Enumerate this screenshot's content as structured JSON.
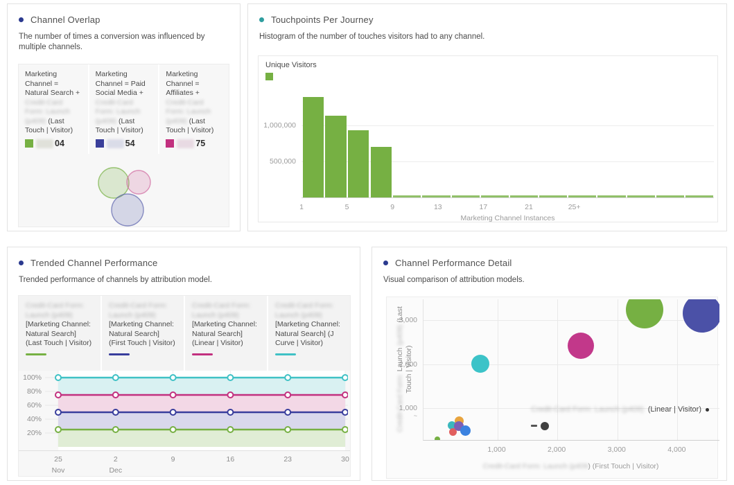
{
  "panels": {
    "overlap": {
      "title": "Channel Overlap",
      "bullet_color": "#2b3a8f",
      "subtitle": "The number of times a conversion was influenced by multiple channels.",
      "legend": [
        {
          "prefix": "Marketing Channel = Natural Search + ",
          "redacted": "Credit-Card Form: Launch (p409)",
          "suffix": " (Last Touch | Visitor)",
          "swatch": "#76b043",
          "chip": "#e0e1da",
          "value_visible": "04"
        },
        {
          "prefix": "Marketing Channel = Paid Social Media + ",
          "redacted": "Credit-Card Form: Launch (p409)",
          "suffix": " (Last Touch | Visitor)",
          "swatch": "#3a3f9a",
          "chip": "#dadce8",
          "value_visible": "54"
        },
        {
          "prefix": "Marketing Channel = Affiliates + ",
          "redacted": "Credit-Card Form: Launch (p409)",
          "suffix": " (Last Touch | Visitor)",
          "swatch": "#c2307f",
          "chip": "#e8dae3",
          "value_visible": "75"
        }
      ]
    },
    "touchpoints": {
      "title": "Touchpoints Per Journey",
      "bullet_color": "#2f9e9f",
      "subtitle": "Histogram of the number of touches visitors had to any channel.",
      "legend_label": "Unique Visitors",
      "legend_color": "#76b043",
      "xlabel": "Marketing Channel Instances"
    },
    "trended": {
      "title": "Trended Channel Performance",
      "bullet_color": "#2b3a8f",
      "subtitle": "Trended performance of channels by attribution model.",
      "legend": [
        {
          "redacted": "Credit-Card Form: Launch (p409)",
          "label": "[Marketing Channel: Natural Search] (Last Touch | Visitor)",
          "color": "#76b043"
        },
        {
          "redacted": "Credit-Card Form: Launch (p409)",
          "label": "[Marketing Channel: Natural Search] (First Touch | Visitor)",
          "color": "#383d9c"
        },
        {
          "redacted": "Credit-Card Form: Launch (p409)",
          "label": "[Marketing Channel: Natural Search] (Linear | Visitor)",
          "color": "#c2307f"
        },
        {
          "redacted": "Credit-Card Form: Launch (p409)",
          "label": "[Marketing Channel: Natural Search] (J Curve | Visitor)",
          "color": "#3fc1c5"
        }
      ]
    },
    "detail": {
      "title": "Channel Performance Detail",
      "bullet_color": "#2b3a8f",
      "subtitle": "Visual comparison of attribution models.",
      "ylabel_redacted_1": "Credit-Card Form:",
      "ylabel_clear_1": " Launch ",
      "ylabel_redacted_2": "(p409)",
      "ylabel_clear_2": " (Last Touch | Visitor)",
      "xlabel_redacted": "Credit-Card Form: Launch (p409",
      "xlabel_visible": ") (First Touch | Visitor)",
      "size_legend_redacted": "Credit-Card Form: Launch (p409)",
      "size_legend_visible": "(Linear | Visitor)",
      "axis_break_marker": "~"
    }
  },
  "chart_data": [
    {
      "id": "channel-overlap-venn",
      "type": "venn",
      "circles": [
        {
          "label": "Natural Search",
          "color": "#76b043",
          "cx": 137,
          "cy": 171,
          "r": 22
        },
        {
          "label": "Affiliates",
          "color": "#d06a9f",
          "cx": 173,
          "cy": 170,
          "r": 17
        },
        {
          "label": "Paid Social Media",
          "color": "#5b63ad",
          "cx": 157,
          "cy": 210,
          "r": 23
        }
      ]
    },
    {
      "id": "touchpoints-histogram",
      "type": "bar",
      "series_name": "Unique Visitors",
      "bar_color": "#76b043",
      "x_ticks": [
        "1",
        "5",
        "9",
        "13",
        "17",
        "21",
        "25+"
      ],
      "y_gridlines": [
        {
          "label": "500,000",
          "value": 500000
        },
        {
          "label": "1,000,000",
          "value": 1000000
        }
      ],
      "large_bars": [
        1390000,
        1130000,
        935000,
        700000
      ],
      "small_bars_count": 11,
      "small_bars_value": 15000,
      "xlabel": "Marketing Channel Instances",
      "ylim": [
        0,
        1730000
      ]
    },
    {
      "id": "trended-performance",
      "type": "line",
      "categories": [
        "25",
        "2",
        "9",
        "16",
        "23",
        "30"
      ],
      "month_labels": [
        "Nov",
        "Dec",
        "",
        "",
        "",
        ""
      ],
      "y_ticks": [
        "100%",
        "80%",
        "60%",
        "40%",
        "20%"
      ],
      "ylim": [
        0,
        100
      ],
      "series": [
        {
          "name": "J Curve | Visitor",
          "color": "#3fc1c5",
          "band": "#d9f1f2",
          "values": [
            100,
            100,
            100,
            100,
            100,
            100
          ]
        },
        {
          "name": "Linear | Visitor",
          "color": "#c2307f",
          "band": "#f3d8e6",
          "values": [
            75,
            75,
            75,
            75,
            75,
            75
          ]
        },
        {
          "name": "First Touch | Visitor",
          "color": "#383d9c",
          "band": "#d9d8ec",
          "values": [
            50,
            50,
            50,
            50,
            50,
            50
          ]
        },
        {
          "name": "Last Touch | Visitor",
          "color": "#76b043",
          "band": "#e0edd5",
          "values": [
            25,
            25,
            25,
            25,
            25,
            25
          ]
        }
      ]
    },
    {
      "id": "channel-performance-bubbles",
      "type": "scatter",
      "xlim": [
        -230,
        4700
      ],
      "ylim": [
        270,
        3480
      ],
      "x_ticks": [
        {
          "value": 1000,
          "label": "1,000"
        },
        {
          "value": 2000,
          "label": "2,000"
        },
        {
          "value": 3000,
          "label": "3,000"
        },
        {
          "value": 4000,
          "label": "4,000"
        }
      ],
      "y_ticks": [
        {
          "value": 1000,
          "label": "1,000"
        },
        {
          "value": 2000,
          "label": "2,000"
        },
        {
          "value": 3000,
          "label": "3,000"
        }
      ],
      "points": [
        {
          "x": 370,
          "y": 697,
          "r": 6.5,
          "color": "#e8a43e"
        },
        {
          "x": 243,
          "y": 602,
          "r": 6,
          "color": "#3bb8bd"
        },
        {
          "x": 255,
          "y": 444,
          "r": 5.5,
          "color": "#e15f5f"
        },
        {
          "x": 359,
          "y": 586,
          "r": 7,
          "color": "#7d5fb5"
        },
        {
          "x": 474,
          "y": 491,
          "r": 7.5,
          "color": "#3b82e0"
        },
        {
          "x": 1,
          "y": 286,
          "r": 4,
          "color": "#76b043"
        },
        {
          "x": 1790,
          "y": 586,
          "r": 6,
          "color": "#404040"
        },
        {
          "x": 717,
          "y": 2009,
          "r": 13,
          "color": "#3cc3c8"
        },
        {
          "x": 2391,
          "y": 2420,
          "r": 19,
          "color": "#c2388a"
        },
        {
          "x": 3453,
          "y": 3242,
          "r": 27,
          "color": "#76b043"
        },
        {
          "x": 4411,
          "y": 3163,
          "r": 28,
          "color": "#4b51a7"
        }
      ]
    }
  ]
}
